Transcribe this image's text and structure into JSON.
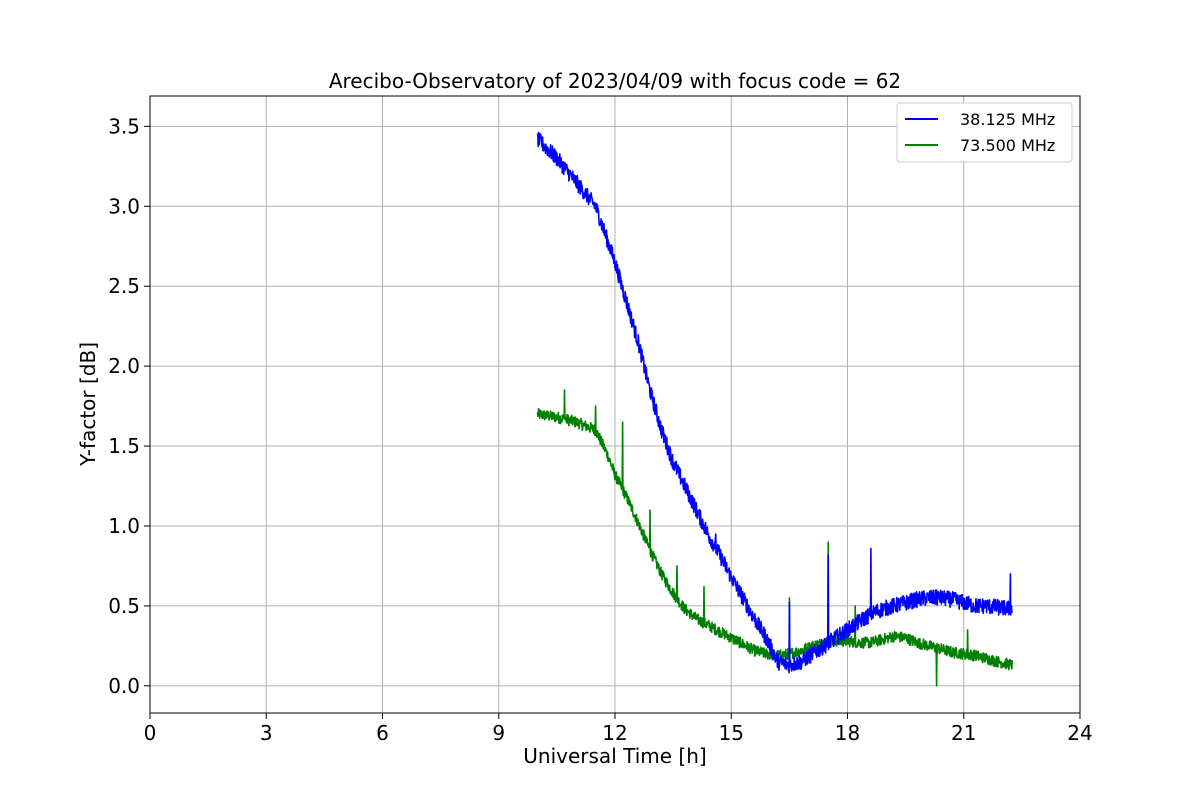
{
  "chart_data": {
    "type": "line",
    "title": "Arecibo-Observatory of 2023/04/09 with focus code = 62",
    "xlabel": "Universal Time [h]",
    "ylabel": "Y-factor [dB]",
    "xlim": [
      0,
      24
    ],
    "ylim": [
      -0.17,
      3.69
    ],
    "xticks": [
      0,
      3,
      6,
      9,
      12,
      15,
      18,
      21,
      24
    ],
    "xtick_labels": [
      "0",
      "3",
      "6",
      "9",
      "12",
      "15",
      "18",
      "21",
      "24"
    ],
    "yticks": [
      0.0,
      0.5,
      1.0,
      1.5,
      2.0,
      2.5,
      3.0,
      3.5
    ],
    "ytick_labels": [
      "0.0",
      "0.5",
      "1.0",
      "1.5",
      "2.0",
      "2.5",
      "3.0",
      "3.5"
    ],
    "grid": true,
    "legend_position": "top-right",
    "series": [
      {
        "name": "38.125 MHz",
        "color": "#0000ff",
        "noise": 0.05,
        "x": [
          10.0,
          10.5,
          11.0,
          11.5,
          12.0,
          12.3,
          12.6,
          12.9,
          13.2,
          13.5,
          13.8,
          14.1,
          14.4,
          14.7,
          15.0,
          15.3,
          15.6,
          15.9,
          16.2,
          16.5,
          16.8,
          17.1,
          17.4,
          17.7,
          18.0,
          18.3,
          18.6,
          18.9,
          19.2,
          19.5,
          19.8,
          20.1,
          20.4,
          20.7,
          21.0,
          21.3,
          21.6,
          21.9,
          22.25
        ],
        "y": [
          3.42,
          3.3,
          3.15,
          3.0,
          2.65,
          2.4,
          2.15,
          1.85,
          1.6,
          1.4,
          1.25,
          1.1,
          0.95,
          0.82,
          0.68,
          0.55,
          0.42,
          0.3,
          0.15,
          0.13,
          0.15,
          0.2,
          0.25,
          0.3,
          0.35,
          0.4,
          0.45,
          0.48,
          0.5,
          0.52,
          0.54,
          0.55,
          0.55,
          0.54,
          0.52,
          0.5,
          0.5,
          0.49,
          0.48
        ],
        "spikes": [
          [
            14.6,
            0.95
          ],
          [
            15.0,
            0.68
          ],
          [
            16.5,
            0.52
          ],
          [
            17.5,
            0.82
          ],
          [
            18.6,
            0.86
          ],
          [
            20.3,
            0.6
          ],
          [
            22.2,
            0.7
          ]
        ]
      },
      {
        "name": "73.500 MHz",
        "color": "#008000",
        "noise": 0.035,
        "x": [
          10.0,
          10.5,
          11.0,
          11.5,
          11.8,
          12.0,
          12.3,
          12.6,
          12.9,
          13.2,
          13.5,
          13.8,
          14.1,
          14.4,
          14.7,
          15.0,
          15.3,
          15.6,
          15.9,
          16.2,
          16.5,
          16.8,
          17.1,
          17.4,
          17.7,
          18.0,
          18.3,
          18.6,
          18.9,
          19.2,
          19.5,
          19.8,
          20.1,
          20.4,
          20.7,
          21.0,
          21.3,
          21.6,
          21.9,
          22.25
        ],
        "y": [
          1.7,
          1.68,
          1.65,
          1.6,
          1.45,
          1.32,
          1.18,
          1.02,
          0.85,
          0.7,
          0.58,
          0.48,
          0.42,
          0.38,
          0.34,
          0.3,
          0.26,
          0.22,
          0.2,
          0.19,
          0.2,
          0.22,
          0.25,
          0.27,
          0.28,
          0.28,
          0.27,
          0.27,
          0.29,
          0.31,
          0.3,
          0.27,
          0.25,
          0.23,
          0.21,
          0.2,
          0.19,
          0.17,
          0.15,
          0.13
        ],
        "spikes": [
          [
            10.7,
            1.85
          ],
          [
            11.5,
            1.75
          ],
          [
            12.2,
            1.65
          ],
          [
            12.9,
            1.1
          ],
          [
            13.6,
            0.75
          ],
          [
            14.3,
            0.62
          ],
          [
            16.5,
            0.55
          ],
          [
            17.5,
            0.9
          ],
          [
            18.2,
            0.5
          ],
          [
            20.3,
            0.0
          ],
          [
            21.1,
            0.35
          ]
        ]
      }
    ]
  }
}
